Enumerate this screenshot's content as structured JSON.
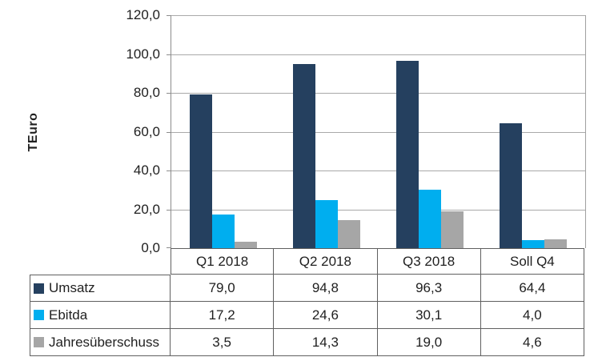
{
  "chart_data": {
    "type": "bar",
    "title": "",
    "ylabel": "TEuro",
    "xlabel": "",
    "ylim": [
      0,
      120
    ],
    "ytick_step": 20,
    "yticks": [
      "0,0",
      "20,0",
      "40,0",
      "60,0",
      "80,0",
      "100,0",
      "120,0"
    ],
    "grid": true,
    "legend_position": "data-table-left",
    "decimal_separator": ",",
    "categories": [
      "Q1 2018",
      "Q2 2018",
      "Q3 2018",
      "Soll Q4"
    ],
    "series": [
      {
        "name": "Umsatz",
        "color": "#25405f",
        "values": [
          79.0,
          94.8,
          96.3,
          64.4
        ],
        "display": [
          "79,0",
          "94,8",
          "96,3",
          "64,4"
        ]
      },
      {
        "name": "Ebitda",
        "color": "#00aeef",
        "values": [
          17.2,
          24.6,
          30.1,
          4.0
        ],
        "display": [
          "17,2",
          "24,6",
          "30,1",
          "4,0"
        ]
      },
      {
        "name": "Jahresüberschuss",
        "color": "#a6a6a6",
        "values": [
          3.5,
          14.3,
          19.0,
          4.6
        ],
        "display": [
          "3,5",
          "14,3",
          "19,0",
          "4,6"
        ]
      }
    ]
  },
  "colors": {
    "plot_border": "#8c8c8c",
    "gridline": "#a9a9a9",
    "table_border": "#606060",
    "background": "#ffffff",
    "text": "#1f1f1f"
  }
}
